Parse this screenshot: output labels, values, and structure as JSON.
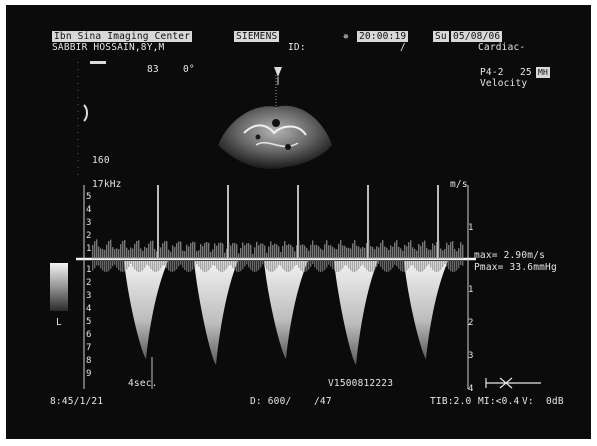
{
  "header": {
    "facility": "Ibn Sina Imaging Center",
    "manufacturer": "SIEMENS",
    "time_symbol": "✵",
    "time": "20:00:19",
    "day": "Su",
    "date": "05/08/06",
    "patient": "SABBIR HOSSAIN,8Y,M",
    "id_label": "ID:",
    "id_sep": "/",
    "preset": "Cardiac-"
  },
  "probe": {
    "name": "P4-2",
    "freq": "25",
    "badge": "MH",
    "mode": "Velocity"
  },
  "image_params": {
    "num_a": "83",
    "num_b": "0°",
    "depth": "160",
    "doppler_freq": "17kHz",
    "velocity_unit": "m/s",
    "sweep": "4sec."
  },
  "velocity_scale": {
    "above": [
      "5",
      "4",
      "3",
      "2",
      "1"
    ],
    "below": [
      "1",
      "2",
      "3",
      "4",
      "5",
      "6",
      "7",
      "8",
      "9"
    ]
  },
  "right_scale": {
    "above": [
      "1"
    ],
    "below": [
      "1",
      "2",
      "3",
      "4"
    ]
  },
  "measurements": {
    "vmax": "max= 2.90m/s",
    "pgmax": "Pmax= 33.6mmHg"
  },
  "grayscale_label": "L",
  "footer": {
    "left": "8:45/1/21",
    "depth_info": "D: 600/",
    "depth_info2": "/47",
    "serial": "V1500812223",
    "tib": "TIB:2.0",
    "mi": "MI:<0.4",
    "v_label": "V:",
    "gain": "0dB"
  }
}
